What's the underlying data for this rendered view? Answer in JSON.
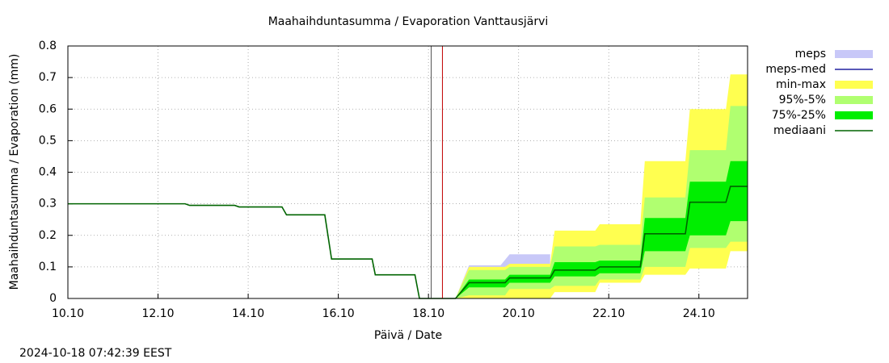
{
  "chart_data": {
    "type": "band",
    "title": "Maahaihduntasumma / Evaporation   Vanttausjärvi",
    "y_label": "Maahaihduntasumma / Evaporation (mm)",
    "x_label": "Päivä / Date",
    "footnote": "2024-10-18 07:42:39 EEST",
    "xlim": [
      10,
      25.08
    ],
    "ylim": [
      0,
      0.8
    ],
    "xticks": [
      {
        "value": 10,
        "label": "10.10"
      },
      {
        "value": 12,
        "label": "12.10"
      },
      {
        "value": 14,
        "label": "14.10"
      },
      {
        "value": 16,
        "label": "16.10"
      },
      {
        "value": 18,
        "label": "18.10"
      },
      {
        "value": 20,
        "label": "20.10"
      },
      {
        "value": 22,
        "label": "22.10"
      },
      {
        "value": 24,
        "label": "24.10"
      }
    ],
    "yticks": [
      0,
      0.1,
      0.2,
      0.3,
      0.4,
      0.5,
      0.6,
      0.7,
      0.8
    ],
    "grid": true,
    "vlines": [
      {
        "x": 18.06,
        "color": "#555555"
      },
      {
        "x": 18.31,
        "color": "#c00000"
      }
    ],
    "series": [
      {
        "name": "meps",
        "style": "band",
        "color": "#c8c8f8",
        "x": [
          18.6,
          18.9,
          19.6,
          19.8,
          20.7
        ],
        "values": [
          0,
          0.105,
          0.105,
          0.14,
          0.14
        ],
        "lower": [
          0,
          0,
          0,
          0,
          0
        ]
      },
      {
        "name": "meps-med",
        "style": "line",
        "color": "#2020a0"
      },
      {
        "name": "min-max",
        "style": "band",
        "color": "#ffff50",
        "x": [
          18.6,
          18.9,
          19.7,
          19.8,
          20.7,
          20.8,
          21.7,
          21.8,
          22.7,
          22.8,
          23.7,
          23.8,
          24.6,
          24.7,
          25.08
        ],
        "values": [
          0,
          0.1,
          0.1,
          0.11,
          0.11,
          0.215,
          0.215,
          0.235,
          0.235,
          0.435,
          0.435,
          0.6,
          0.6,
          0.71,
          0.71
        ],
        "lower": [
          0,
          0,
          0,
          0,
          0,
          0.02,
          0.02,
          0.05,
          0.05,
          0.075,
          0.075,
          0.095,
          0.095,
          0.15,
          0.15
        ]
      },
      {
        "name": "95%-5%",
        "style": "band",
        "color": "#b0ff70",
        "x": [
          18.6,
          18.9,
          19.7,
          19.8,
          20.7,
          20.8,
          21.7,
          21.8,
          22.7,
          22.8,
          23.7,
          23.8,
          24.6,
          24.7,
          25.08
        ],
        "values": [
          0,
          0.09,
          0.09,
          0.1,
          0.1,
          0.165,
          0.165,
          0.17,
          0.17,
          0.32,
          0.32,
          0.47,
          0.47,
          0.61,
          0.61
        ],
        "lower": [
          0,
          0.01,
          0.01,
          0.03,
          0.03,
          0.04,
          0.04,
          0.06,
          0.06,
          0.1,
          0.1,
          0.16,
          0.16,
          0.18,
          0.18
        ]
      },
      {
        "name": "75%-25%",
        "style": "band",
        "color": "#00ee00",
        "x": [
          18.6,
          18.9,
          19.7,
          19.8,
          20.7,
          20.8,
          21.7,
          21.8,
          22.7,
          22.8,
          23.7,
          23.8,
          24.6,
          24.7,
          25.08
        ],
        "values": [
          0,
          0.06,
          0.06,
          0.075,
          0.075,
          0.115,
          0.115,
          0.12,
          0.12,
          0.255,
          0.255,
          0.37,
          0.37,
          0.435,
          0.435
        ],
        "lower": [
          0,
          0.035,
          0.035,
          0.05,
          0.05,
          0.07,
          0.07,
          0.08,
          0.08,
          0.15,
          0.15,
          0.2,
          0.2,
          0.245,
          0.245
        ]
      },
      {
        "name": "mediaani",
        "style": "line",
        "color": "#006400",
        "x": [
          10,
          12.6,
          12.7,
          13.7,
          13.8,
          14.75,
          14.85,
          15.7,
          15.85,
          16.75,
          16.82,
          17.7,
          17.8,
          18.6,
          18.9,
          19.7,
          19.8,
          20.7,
          20.8,
          21.7,
          21.8,
          22.7,
          22.8,
          23.7,
          23.8,
          24.6,
          24.7,
          25.08
        ],
        "values": [
          0.3,
          0.3,
          0.295,
          0.295,
          0.29,
          0.29,
          0.265,
          0.265,
          0.125,
          0.125,
          0.075,
          0.075,
          0,
          0,
          0.05,
          0.05,
          0.065,
          0.065,
          0.09,
          0.09,
          0.1,
          0.1,
          0.205,
          0.205,
          0.305,
          0.305,
          0.355,
          0.355
        ]
      }
    ]
  }
}
